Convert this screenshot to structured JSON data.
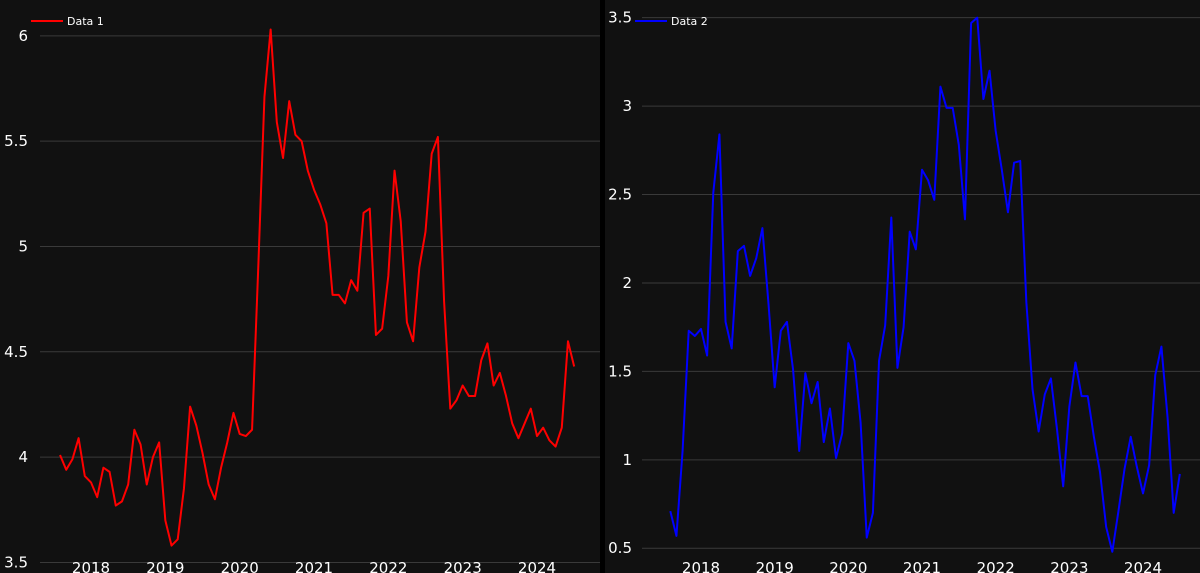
{
  "chart_data": [
    {
      "type": "line",
      "series": [
        {
          "name": "Data 1",
          "color": "#ff0000",
          "x": [
            "2017-08",
            "2017-09",
            "2017-10",
            "2017-11",
            "2017-12",
            "2018-01",
            "2018-02",
            "2018-03",
            "2018-04",
            "2018-05",
            "2018-06",
            "2018-07",
            "2018-08",
            "2018-09",
            "2018-10",
            "2018-11",
            "2018-12",
            "2019-01",
            "2019-02",
            "2019-03",
            "2019-04",
            "2019-05",
            "2019-06",
            "2019-07",
            "2019-08",
            "2019-09",
            "2019-10",
            "2019-11",
            "2019-12",
            "2020-01",
            "2020-02",
            "2020-03",
            "2020-04",
            "2020-05",
            "2020-06",
            "2020-07",
            "2020-08",
            "2020-09",
            "2020-10",
            "2020-11",
            "2020-12",
            "2021-01",
            "2021-02",
            "2021-03",
            "2021-04",
            "2021-05",
            "2021-06",
            "2021-07",
            "2021-08",
            "2021-09",
            "2021-10",
            "2021-11",
            "2021-12",
            "2022-01",
            "2022-02",
            "2022-03",
            "2022-04",
            "2022-05",
            "2022-06",
            "2022-07",
            "2022-08",
            "2022-09",
            "2022-10",
            "2022-11",
            "2022-12",
            "2023-01",
            "2023-02",
            "2023-03",
            "2023-04",
            "2023-05",
            "2023-06",
            "2023-07",
            "2023-08",
            "2023-09",
            "2023-10",
            "2023-11",
            "2023-12",
            "2024-01",
            "2024-02",
            "2024-03",
            "2024-04",
            "2024-05",
            "2024-06",
            "2024-07"
          ],
          "values": [
            4.01,
            3.94,
            3.99,
            4.09,
            3.91,
            3.88,
            3.81,
            3.95,
            3.93,
            3.77,
            3.79,
            3.87,
            4.13,
            4.06,
            3.87,
            4.0,
            4.07,
            3.7,
            3.58,
            3.61,
            3.85,
            4.24,
            4.15,
            4.02,
            3.87,
            3.8,
            3.95,
            4.07,
            4.21,
            4.11,
            4.1,
            4.13,
            4.9,
            5.71,
            6.03,
            5.59,
            5.42,
            5.69,
            5.53,
            5.5,
            5.36,
            5.27,
            5.2,
            5.11,
            4.77,
            4.77,
            4.73,
            4.84,
            4.79,
            5.16,
            5.18,
            4.58,
            4.61,
            4.86,
            5.36,
            5.12,
            4.64,
            4.55,
            4.9,
            5.07,
            5.44,
            5.52,
            4.74,
            4.23,
            4.27,
            4.34,
            4.29,
            4.29,
            4.46,
            4.54,
            4.34,
            4.4,
            4.29,
            4.16,
            4.09,
            4.16,
            4.23,
            4.1,
            4.14,
            4.08,
            4.05,
            4.14,
            4.55,
            4.43
          ]
        }
      ],
      "xticks": [
        "2018",
        "2019",
        "2020",
        "2021",
        "2022",
        "2023",
        "2024"
      ],
      "yticks": [
        "3.5",
        "4",
        "4.5",
        "5",
        "5.5",
        "6"
      ],
      "ylim": [
        3.45,
        6.17
      ],
      "grid": true,
      "legend": "top-left",
      "background": "#111111",
      "gridColor": "#3a3a3a"
    },
    {
      "type": "line",
      "series": [
        {
          "name": "Data 2",
          "color": "#0000ff",
          "x": [
            "2017-08",
            "2017-09",
            "2017-10",
            "2017-11",
            "2017-12",
            "2018-01",
            "2018-02",
            "2018-03",
            "2018-04",
            "2018-05",
            "2018-06",
            "2018-07",
            "2018-08",
            "2018-09",
            "2018-10",
            "2018-11",
            "2018-12",
            "2019-01",
            "2019-02",
            "2019-03",
            "2019-04",
            "2019-05",
            "2019-06",
            "2019-07",
            "2019-08",
            "2019-09",
            "2019-10",
            "2019-11",
            "2019-12",
            "2020-01",
            "2020-02",
            "2020-03",
            "2020-04",
            "2020-05",
            "2020-06",
            "2020-07",
            "2020-08",
            "2020-09",
            "2020-10",
            "2020-11",
            "2020-12",
            "2021-01",
            "2021-02",
            "2021-03",
            "2021-04",
            "2021-05",
            "2021-06",
            "2021-07",
            "2021-08",
            "2021-09",
            "2021-10",
            "2021-11",
            "2021-12",
            "2022-01",
            "2022-02",
            "2022-03",
            "2022-04",
            "2022-05",
            "2022-06",
            "2022-07",
            "2022-08",
            "2022-09",
            "2022-10",
            "2022-11",
            "2022-12",
            "2023-01",
            "2023-02",
            "2023-03",
            "2023-04",
            "2023-05",
            "2023-06",
            "2023-07",
            "2023-08",
            "2023-09",
            "2023-10",
            "2023-11",
            "2023-12",
            "2024-01",
            "2024-02",
            "2024-03",
            "2024-04",
            "2024-05",
            "2024-06",
            "2024-07"
          ],
          "values": [
            0.71,
            0.57,
            1.05,
            1.73,
            1.7,
            1.74,
            1.59,
            2.51,
            2.84,
            1.78,
            1.63,
            2.18,
            2.21,
            2.04,
            2.14,
            2.31,
            1.88,
            1.41,
            1.73,
            1.78,
            1.51,
            1.05,
            1.49,
            1.32,
            1.44,
            1.1,
            1.29,
            1.01,
            1.15,
            1.66,
            1.56,
            1.21,
            0.56,
            0.7,
            1.56,
            1.76,
            2.37,
            1.52,
            1.75,
            2.29,
            2.19,
            2.64,
            2.58,
            2.47,
            3.11,
            2.99,
            2.99,
            2.78,
            2.36,
            3.47,
            3.5,
            3.04,
            3.2,
            2.86,
            2.64,
            2.4,
            2.68,
            2.69,
            1.89,
            1.4,
            1.16,
            1.37,
            1.46,
            1.17,
            0.85,
            1.3,
            1.55,
            1.36,
            1.36,
            1.13,
            0.93,
            0.62,
            0.48,
            0.71,
            0.95,
            1.13,
            0.96,
            0.81,
            0.97,
            1.48,
            1.64,
            1.24,
            0.7,
            0.92
          ]
        }
      ],
      "xticks": [
        "2018",
        "2019",
        "2020",
        "2021",
        "2022",
        "2023",
        "2024"
      ],
      "yticks": [
        "0.5",
        "1",
        "1.5",
        "2",
        "2.5",
        "3",
        "3.5"
      ],
      "ylim": [
        0.36,
        3.6
      ],
      "grid": true,
      "legend": "top-left",
      "background": "#111111",
      "gridColor": "#3a3a3a"
    }
  ]
}
